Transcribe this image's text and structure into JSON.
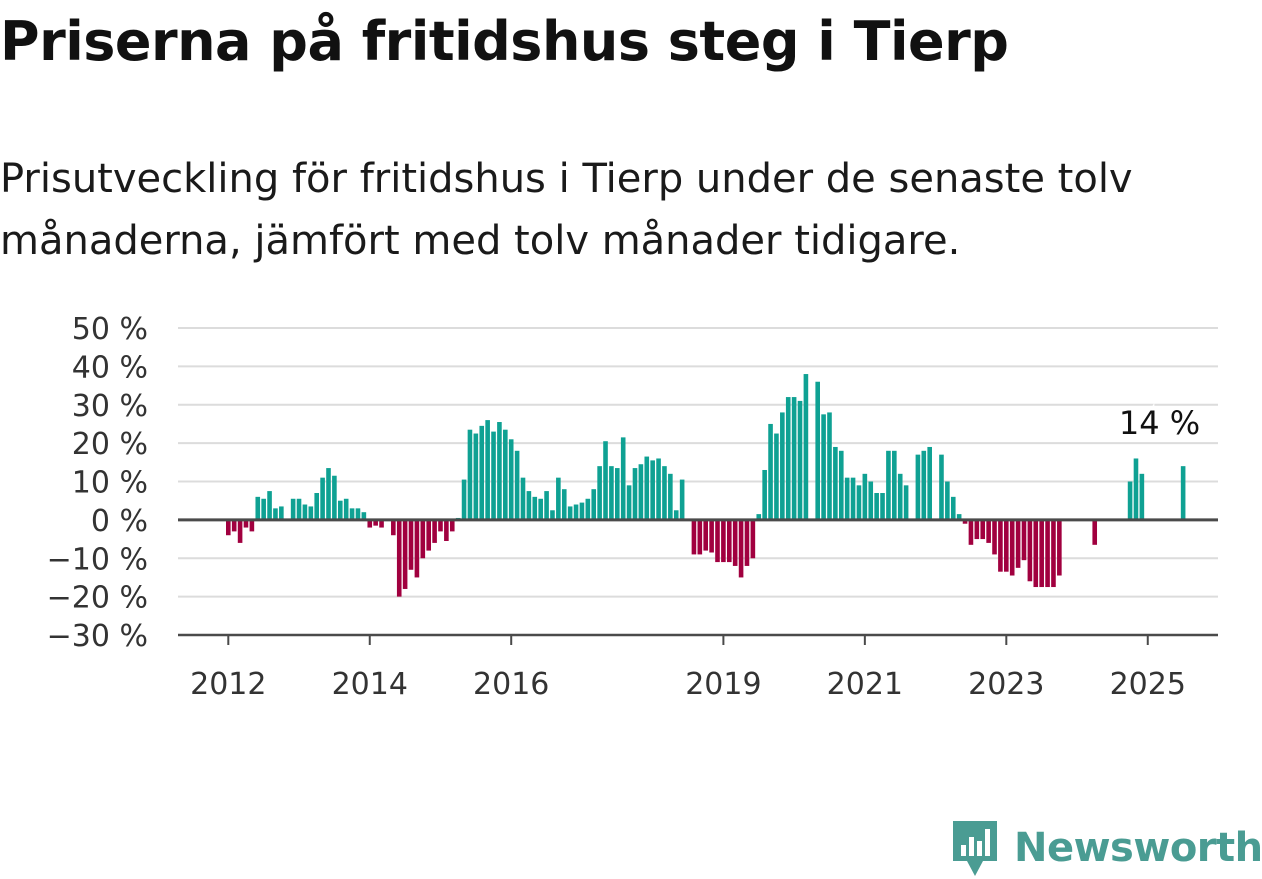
{
  "title": "Priserna på fritidshus steg i Tierp",
  "subtitle": "Prisutveckling för fritidshus i Tierp under de senaste tolv månaderna, jämfört med tolv månader tidigare.",
  "logo": {
    "text": "Newsworthy",
    "icon": "newsworthy-logo-icon",
    "color": "#4a9c93"
  },
  "chart_data": {
    "type": "bar",
    "title": "Priserna på fritidshus steg i Tierp",
    "xlabel": "",
    "ylabel": "",
    "ylim": [
      -30,
      50
    ],
    "yticks": [
      50,
      40,
      30,
      20,
      10,
      0,
      -10,
      -20,
      -30
    ],
    "ytick_labels": [
      "50 %",
      "40 %",
      "30 %",
      "20 %",
      "10 %",
      "0 %",
      "−10 %",
      "−20 %",
      "−30 %"
    ],
    "xticks": [
      {
        "label": "2012",
        "year": 2012
      },
      {
        "label": "2014",
        "year": 2014
      },
      {
        "label": "2016",
        "year": 2016
      },
      {
        "label": "2019",
        "year": 2019
      },
      {
        "label": "2021",
        "year": 2021
      },
      {
        "label": "2023",
        "year": 2023
      },
      {
        "label": "2025",
        "year": 2025
      }
    ],
    "grid": true,
    "colors": {
      "positive": "#0fa193",
      "negative": "#a1003f",
      "grid": "#dcdcdc",
      "axis": "#4a4a4a"
    },
    "annotation": {
      "label": "14 %",
      "date": "2025-03",
      "value": 14
    },
    "series": [
      {
        "start": "2011-11",
        "frequency": "monthly",
        "values": [
          null,
          null,
          -4,
          -3,
          -6,
          -2,
          -3,
          6,
          5.5,
          7.5,
          3,
          3.5,
          null,
          5.5,
          5.5,
          4,
          3.5,
          7,
          11,
          13.5,
          11.5,
          5,
          5.5,
          3,
          3,
          2,
          -2,
          -1.5,
          -2,
          0,
          -4,
          -20,
          -18,
          -13,
          -15,
          -10,
          -8,
          -6,
          -3,
          -5.5,
          -3,
          0.5,
          10.5,
          23.5,
          22.5,
          24.5,
          26,
          23,
          25.5,
          23.5,
          21,
          18,
          11,
          7.5,
          6,
          5.5,
          7.5,
          2.5,
          11,
          8,
          3.5,
          4,
          4.5,
          5.5,
          8,
          14,
          20.5,
          14,
          13.5,
          21.5,
          9,
          13.5,
          14.5,
          16.5,
          15.5,
          16,
          14,
          12,
          2.5,
          10.5,
          null,
          -9,
          -9,
          -8,
          -8.5,
          -11,
          -11,
          -11,
          -12,
          -15,
          -12,
          -10,
          1.5,
          13,
          25,
          22.5,
          28,
          32,
          32,
          31,
          38,
          null,
          36,
          27.5,
          28,
          19,
          18,
          11,
          11,
          9,
          12,
          10,
          7,
          7,
          18,
          18,
          12,
          9,
          null,
          17,
          18,
          19,
          null,
          17,
          10,
          6,
          1.5,
          -1,
          -6.5,
          -5,
          -5,
          -6,
          -9,
          -13.5,
          -13.5,
          -14.5,
          -12.5,
          -10.5,
          -16,
          -17.5,
          -17.5,
          -17.5,
          -17.5,
          -14.5,
          null,
          null,
          null,
          null,
          null,
          -6.5,
          null,
          null,
          null,
          null,
          null,
          10,
          16,
          12,
          null,
          null,
          null,
          null,
          null,
          null,
          14
        ]
      }
    ]
  }
}
